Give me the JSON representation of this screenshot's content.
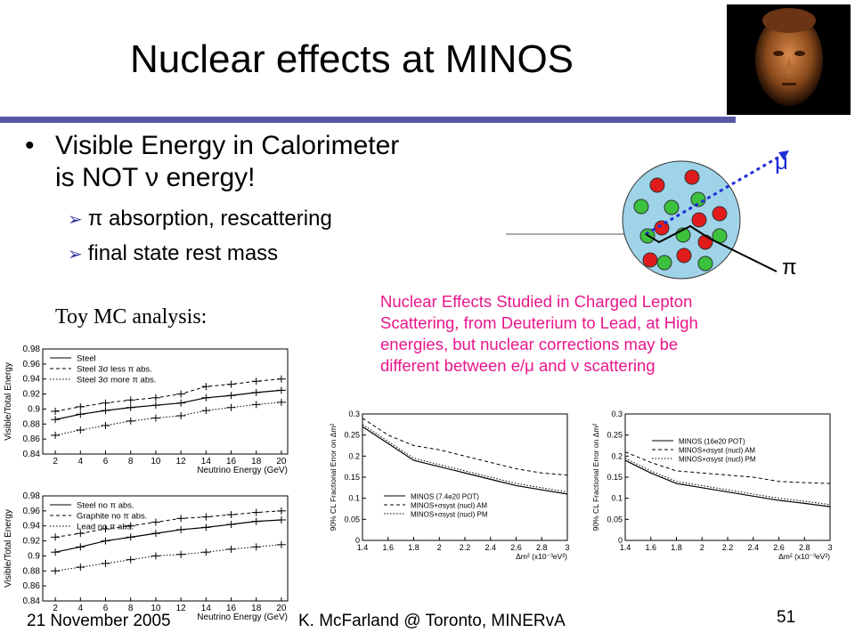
{
  "slide": {
    "title": "Nuclear effects at MINOS",
    "bullet_line1": "Visible Energy in Calorimeter",
    "bullet_line2": "is NOT ν energy!",
    "sub_items": [
      "π absorption,  rescattering",
      "final state rest mass"
    ],
    "toy_label": "Toy MC analysis:",
    "note_lines": [
      "Nuclear Effects Studied in Charged Lepton",
      "Scattering, from Deuterium to Lead, at High",
      "energies, but nuclear corrections may be",
      "different between e/μ and ν  scattering"
    ],
    "footer_date": "21 November 2005",
    "footer_author": "K. McFarland @ Toronto, MINERvA",
    "page_number": "51"
  },
  "diagram": {
    "muon_label": "μ",
    "pion_label": "π"
  },
  "colors": {
    "rule": "#5b57a6",
    "note": "#e8168c",
    "muon_track": "#1f2fd6",
    "proton": "#e11b1b",
    "neutron": "#3cc23c",
    "nucleus": "#9ed3e8"
  },
  "chart_data": [
    {
      "type": "line",
      "panel": "toy-mc-top",
      "x": [
        2,
        4,
        6,
        8,
        10,
        12,
        14,
        16,
        18,
        20
      ],
      "xlabel": "Neutrino Energy (GeV)",
      "ylabel": "Visible/Total Energy",
      "ylim": [
        0.84,
        0.98
      ],
      "yticks": [
        0.84,
        0.86,
        0.88,
        0.9,
        0.92,
        0.94,
        0.96,
        0.98
      ],
      "series": [
        {
          "name": "Steel",
          "values": [
            0.886,
            0.893,
            0.898,
            0.902,
            0.905,
            0.908,
            0.915,
            0.918,
            0.922,
            0.925
          ]
        },
        {
          "name": "Steel 3σ less π abs.",
          "values": [
            0.897,
            0.903,
            0.908,
            0.912,
            0.915,
            0.92,
            0.93,
            0.933,
            0.937,
            0.94
          ]
        },
        {
          "name": "Steel 3σ more π abs.",
          "values": [
            0.865,
            0.872,
            0.878,
            0.884,
            0.888,
            0.891,
            0.898,
            0.902,
            0.906,
            0.909
          ]
        }
      ]
    },
    {
      "type": "line",
      "panel": "toy-mc-bottom",
      "x": [
        2,
        4,
        6,
        8,
        10,
        12,
        14,
        16,
        18,
        20
      ],
      "xlabel": "Neutrino Energy (GeV)",
      "ylabel": "Visible/Total Energy",
      "ylim": [
        0.84,
        0.98
      ],
      "yticks": [
        0.84,
        0.86,
        0.88,
        0.9,
        0.92,
        0.94,
        0.96,
        0.98
      ],
      "series": [
        {
          "name": "Steel no π abs.",
          "values": [
            0.905,
            0.912,
            0.92,
            0.925,
            0.93,
            0.935,
            0.938,
            0.942,
            0.946,
            0.948
          ]
        },
        {
          "name": "Graphite no π abs.",
          "values": [
            0.925,
            0.93,
            0.936,
            0.94,
            0.945,
            0.95,
            0.952,
            0.955,
            0.958,
            0.96
          ]
        },
        {
          "name": "Lead no π abs.",
          "values": [
            0.88,
            0.885,
            0.89,
            0.895,
            0.9,
            0.902,
            0.905,
            0.909,
            0.912,
            0.915
          ]
        }
      ]
    },
    {
      "type": "line",
      "panel": "minos-7.4e20",
      "x": [
        1.4,
        1.6,
        1.8,
        2.0,
        2.2,
        2.4,
        2.6,
        2.8,
        3.0
      ],
      "xlabel": "Δm² (x10⁻³eV²)",
      "ylabel": "90% CL Fractional Error on Δm²",
      "ylim": [
        0,
        0.3
      ],
      "yticks": [
        0,
        0.05,
        0.1,
        0.15,
        0.2,
        0.25,
        0.3
      ],
      "xticks": [
        "1.4",
        "1.6",
        "1.8",
        "2",
        "2.2",
        "2.4",
        "2.6",
        "2.8",
        "3"
      ],
      "series": [
        {
          "name": "MINOS (7.4e20 POT)",
          "values": [
            0.27,
            0.23,
            0.19,
            0.175,
            0.16,
            0.145,
            0.13,
            0.12,
            0.11
          ]
        },
        {
          "name": "MINOS+σsyst (nucl) AM",
          "values": [
            0.29,
            0.25,
            0.225,
            0.215,
            0.2,
            0.185,
            0.17,
            0.16,
            0.155
          ]
        },
        {
          "name": "MINOS+σsyst (nucl) PM",
          "values": [
            0.275,
            0.235,
            0.195,
            0.18,
            0.165,
            0.15,
            0.135,
            0.125,
            0.115
          ]
        }
      ]
    },
    {
      "type": "line",
      "panel": "minos-16e20",
      "x": [
        1.4,
        1.6,
        1.8,
        2.0,
        2.2,
        2.4,
        2.6,
        2.8,
        3.0
      ],
      "xlabel": "Δm² (x10⁻³eV²)",
      "ylabel": "90% CL Fractional Error on Δm²",
      "ylim": [
        0,
        0.3
      ],
      "yticks": [
        0,
        0.05,
        0.1,
        0.15,
        0.2,
        0.25,
        0.3
      ],
      "xticks": [
        "1.4",
        "1.6",
        "1.8",
        "2",
        "2.2",
        "2.4",
        "2.6",
        "2.8",
        "3"
      ],
      "series": [
        {
          "name": "MINOS (16e20 POT)",
          "values": [
            0.19,
            0.16,
            0.135,
            0.125,
            0.115,
            0.105,
            0.095,
            0.088,
            0.08
          ]
        },
        {
          "name": "MINOS+σsyst (nucl) AM",
          "values": [
            0.21,
            0.185,
            0.165,
            0.16,
            0.155,
            0.15,
            0.14,
            0.137,
            0.135
          ]
        },
        {
          "name": "MINOS+σsyst (nucl) PM",
          "values": [
            0.195,
            0.165,
            0.14,
            0.13,
            0.12,
            0.11,
            0.1,
            0.093,
            0.085
          ]
        }
      ]
    }
  ]
}
